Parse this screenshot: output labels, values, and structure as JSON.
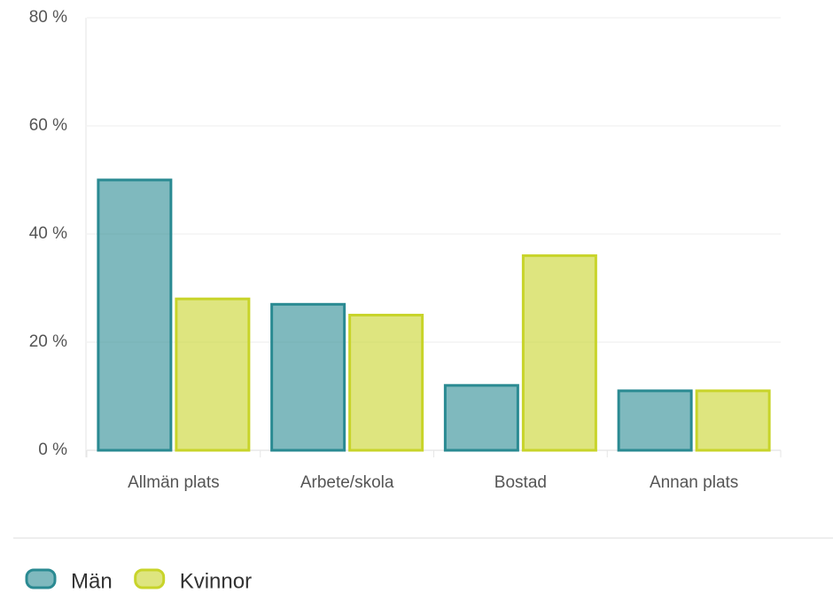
{
  "chart_data": {
    "type": "bar",
    "categories": [
      "Allmän plats",
      "Arbete/skola",
      "Bostad",
      "Annan plats"
    ],
    "series": [
      {
        "name": "Män",
        "color": "#2a8a92",
        "values": [
          50,
          27,
          12,
          11
        ]
      },
      {
        "name": "Kvinnor",
        "color": "#c8d42a",
        "values": [
          28,
          25,
          36,
          11
        ]
      }
    ],
    "ylim": [
      0,
      80
    ],
    "yticks": [
      {
        "value": 0,
        "label": "0 %"
      },
      {
        "value": 20,
        "label": "20 %"
      },
      {
        "value": 40,
        "label": "40 %"
      },
      {
        "value": 60,
        "label": "60 %"
      },
      {
        "value": 80,
        "label": "80 %"
      }
    ],
    "grid": true,
    "legend": "bottom"
  }
}
